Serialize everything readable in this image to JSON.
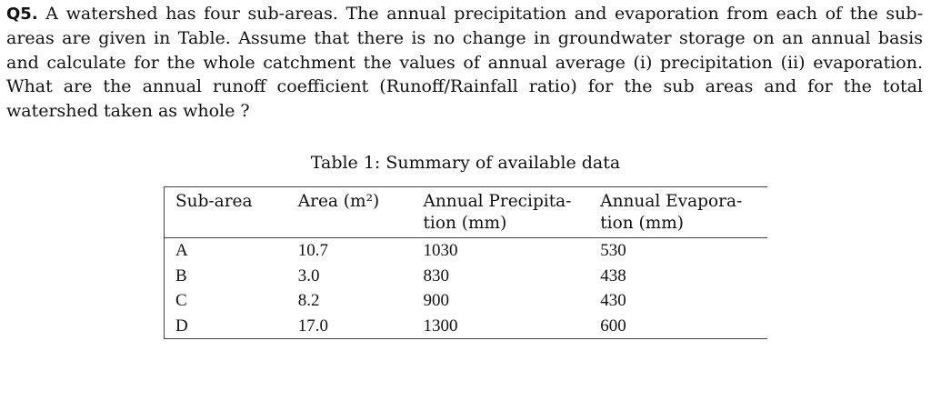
{
  "question": {
    "number": "Q5.",
    "text": "A watershed has four sub-areas. The annual precipitation and evaporation from each of the sub-areas are given in Table. Assume that there is no change in groundwater storage on an annual basis and calculate for the whole catchment the values of annual average (i) precipitation (ii) evaporation. What are the annual runoff coefficient (Runoff/Rainfall ratio) for the sub areas and for the total watershed taken as whole ?"
  },
  "table": {
    "caption": "Table 1: Summary of available data",
    "headers": {
      "subarea": "Sub-area",
      "area": "Area (m²)",
      "precip": "Annual Precipita- tion (mm)",
      "evap": "Annual Evapora- tion (mm)"
    },
    "rows": [
      {
        "subarea": "A",
        "area": "10.7",
        "precip": "1030",
        "evap": "530"
      },
      {
        "subarea": "B",
        "area": "3.0",
        "precip": "830",
        "evap": "438"
      },
      {
        "subarea": "C",
        "area": "8.2",
        "precip": "900",
        "evap": "430"
      },
      {
        "subarea": "D",
        "area": "17.0",
        "precip": "1300",
        "evap": "600"
      }
    ]
  }
}
